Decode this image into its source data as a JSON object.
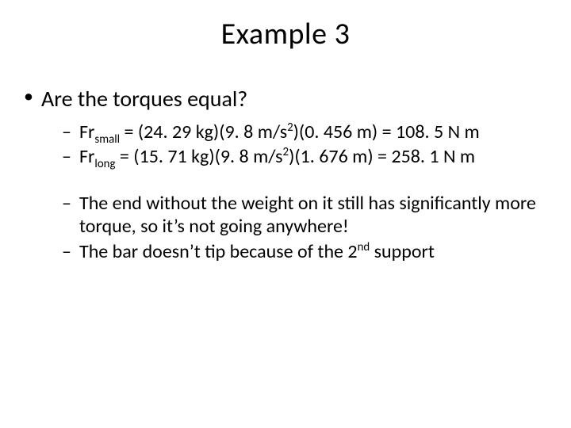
{
  "slide": {
    "title": "Example 3",
    "background_color": "#ffffff",
    "text_color": "#000000",
    "title_fontsize": 38,
    "body_fontsize_l1": 28,
    "body_fontsize_l2": 24
  },
  "bullets": {
    "q": "Are the torques equal?",
    "fr_small_label": "Fr",
    "fr_small_sub": "small",
    "fr_small_eq_a": " = (24. 29 kg)(9. 8 m/s",
    "fr_small_sup": "2",
    "fr_small_eq_b": ")(0. 456 m) = 108. 5 N m",
    "fr_long_label": "Fr",
    "fr_long_sub": "long",
    "fr_long_eq_a": " = (15. 71 kg)(9. 8 m/s",
    "fr_long_sup": "2",
    "fr_long_eq_b": ")(1. 676 m) = 258. 1 N m",
    "concl1": "The end without the weight on it still has significantly more torque, so it’s not going anywhere!",
    "concl2_a": "The bar doesn’t tip because of the 2",
    "concl2_sup": "nd",
    "concl2_b": " support"
  }
}
